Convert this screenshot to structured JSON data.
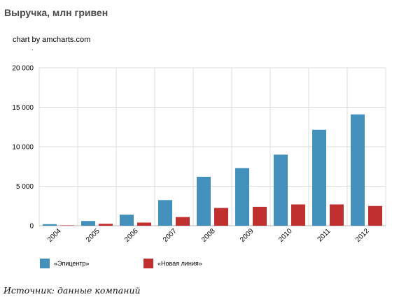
{
  "page": {
    "title": "Выручка, млн гривен",
    "credit": "chart by amcharts.com",
    "credit_dot": ".",
    "source": "Источник: данные компаний"
  },
  "chart_data": {
    "type": "bar",
    "categories": [
      "2004",
      "2005",
      "2006",
      "2007",
      "2008",
      "2009",
      "2010",
      "2011",
      "2012"
    ],
    "series": [
      {
        "name": "«Эпицентр»",
        "color": "#4390bd",
        "values": [
          200,
          600,
          1400,
          3250,
          6200,
          7300,
          9000,
          12150,
          14100
        ]
      },
      {
        "name": "«Новая линия»",
        "color": "#c0302e",
        "values": [
          50,
          250,
          400,
          1100,
          2250,
          2400,
          2700,
          2700,
          2500
        ]
      }
    ],
    "yticks": [
      "0",
      "5 000",
      "10 000",
      "15 000",
      "20 000"
    ],
    "ylim": [
      0,
      20000
    ],
    "grid": true,
    "legend_position": "bottom"
  }
}
